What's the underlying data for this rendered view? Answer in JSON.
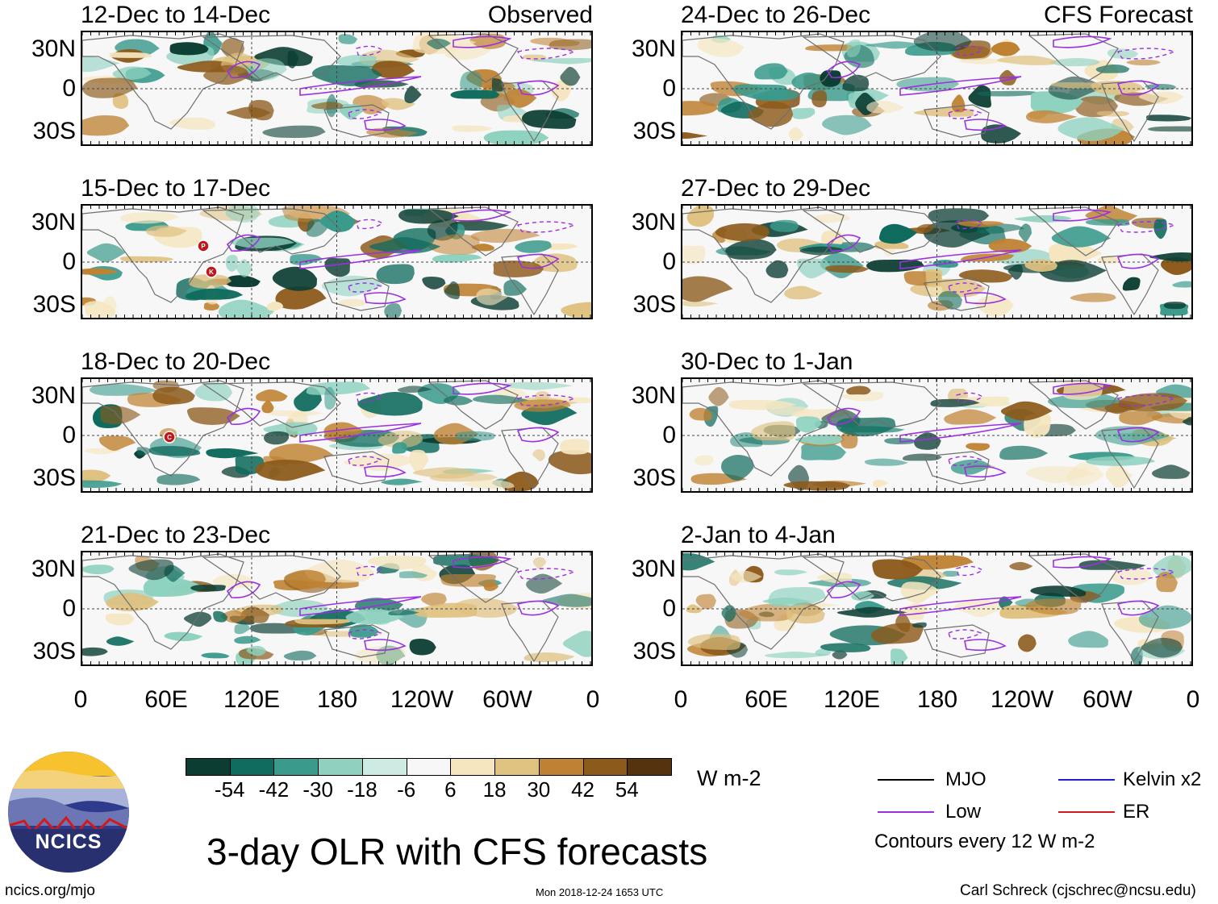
{
  "panels": {
    "observed": [
      {
        "title": "12-Dec to 14-Dec",
        "tag": "Observed"
      },
      {
        "title": "15-Dec to 17-Dec",
        "tag": ""
      },
      {
        "title": "18-Dec to 20-Dec",
        "tag": ""
      },
      {
        "title": "21-Dec to 23-Dec",
        "tag": ""
      }
    ],
    "forecast": [
      {
        "title": "24-Dec to 26-Dec",
        "tag": "CFS Forecast"
      },
      {
        "title": "27-Dec to 29-Dec",
        "tag": ""
      },
      {
        "title": "30-Dec to 1-Jan",
        "tag": ""
      },
      {
        "title": "2-Jan to 4-Jan",
        "tag": ""
      }
    ]
  },
  "axes": {
    "lat_labels": [
      "30N",
      "0",
      "30S"
    ],
    "lon_labels": [
      "0",
      "60E",
      "120E",
      "180",
      "120W",
      "60W",
      "0"
    ]
  },
  "colorbar": {
    "colors": [
      "#0b3d33",
      "#0f6b5d",
      "#3a9a8c",
      "#8ed1bf",
      "#cdebe3",
      "#f7f7f7",
      "#f5e6c0",
      "#dfc180",
      "#bf8233",
      "#8c5a1b",
      "#54330e"
    ],
    "ticks": [
      "-54",
      "-42",
      "-30",
      "-18",
      "-6",
      "6",
      "18",
      "30",
      "42",
      "54"
    ],
    "units": "W m-2"
  },
  "legend": {
    "mjo": {
      "label": "MJO",
      "color": "#000000"
    },
    "kelvin": {
      "label": "Kelvin x2",
      "color": "#1f1fcf"
    },
    "low": {
      "label": "Low",
      "color": "#9b30e0"
    },
    "er": {
      "label": "ER",
      "color": "#d11a1a"
    },
    "note": "Contours every 12 W m-2"
  },
  "storms": [
    {
      "panel": 1,
      "symbol": "P"
    },
    {
      "panel": 1,
      "symbol": "K"
    },
    {
      "panel": 2,
      "symbol": "C"
    }
  ],
  "title": "3-day OLR with CFS forecasts",
  "footer": {
    "site": "ncics.org/mjo",
    "timestamp": "Mon 2018-12-24 1653 UTC",
    "author": "Carl Schreck (cjschrec@ncsu.edu)"
  },
  "logo": {
    "text": "NCICS"
  }
}
